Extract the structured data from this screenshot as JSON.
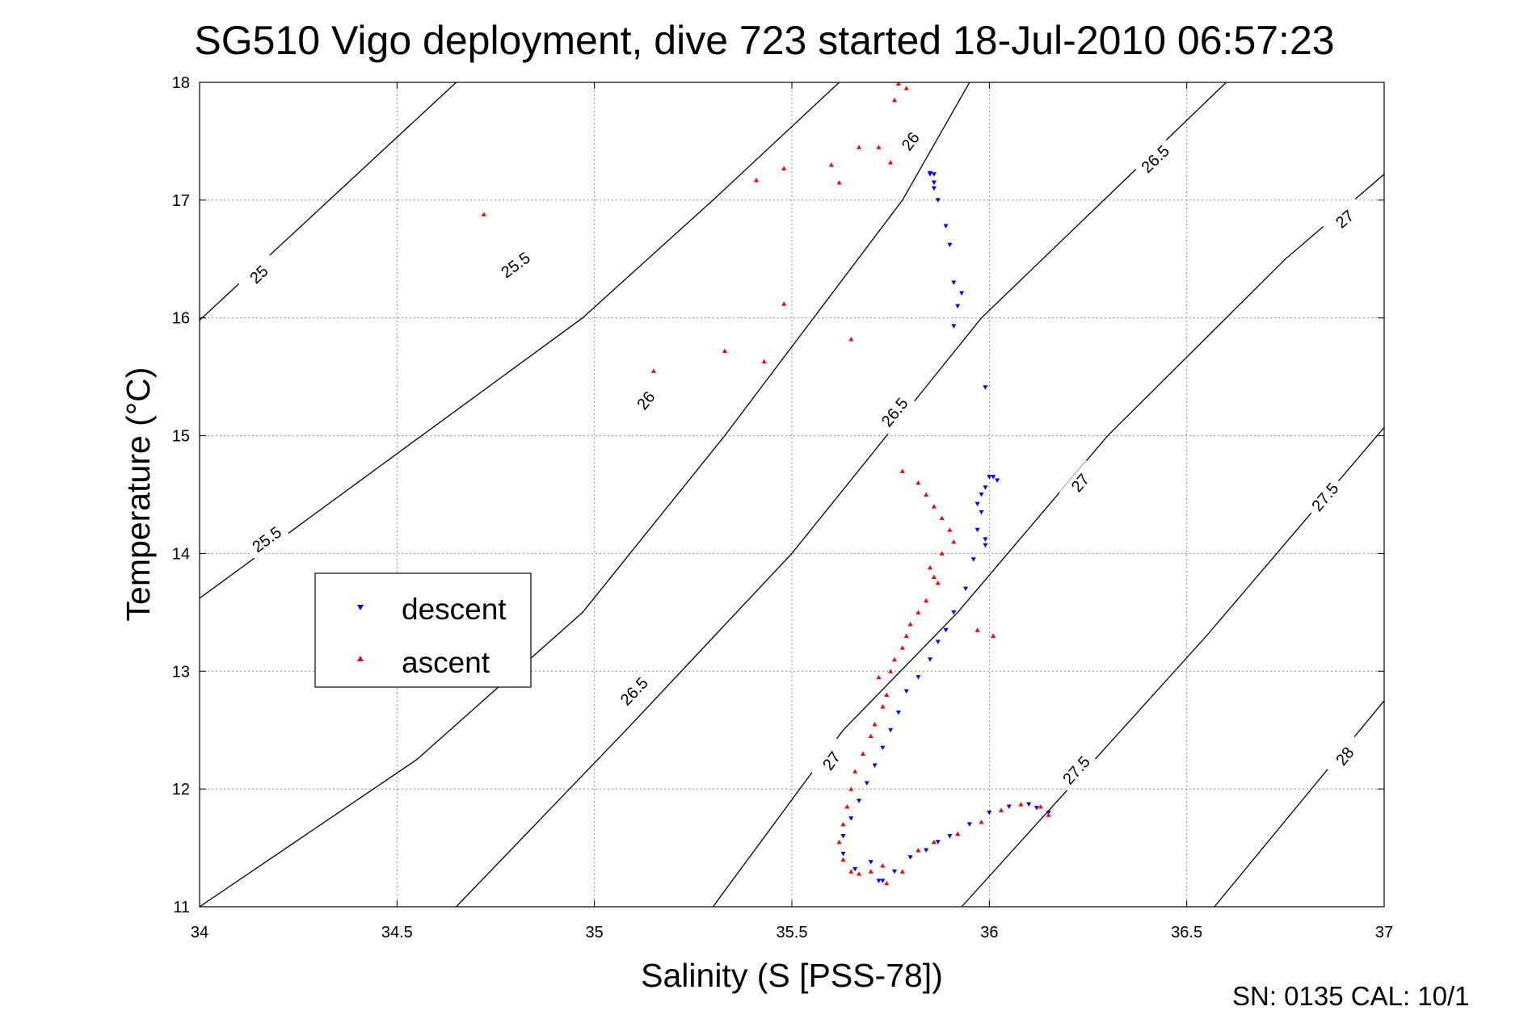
{
  "chart_data": {
    "type": "scatter",
    "title": "SG510 Vigo deployment, dive 723 started 18-Jul-2010 06:57:23",
    "xlabel": "Salinity (S [PSS-78])",
    "ylabel": "Temperature (°C)",
    "xlim": [
      34,
      37
    ],
    "ylim": [
      11,
      18
    ],
    "xticks": [
      "34",
      "34.5",
      "35",
      "35.5",
      "36",
      "36.5",
      "37"
    ],
    "yticks": [
      "11",
      "12",
      "13",
      "14",
      "15",
      "16",
      "17",
      "18"
    ],
    "grid": true,
    "legend": {
      "placement": "left"
    },
    "footer": "SN: 0135  CAL: 10/1",
    "colors": {
      "descent": "#0000ff",
      "ascent": "#ff0000",
      "isopycnal": "#000000"
    },
    "isopycnals": [
      {
        "label": "25",
        "points": [
          [
            34,
            15.98
          ],
          [
            34.65,
            18.0
          ]
        ],
        "label_positions": [
          [
            34.15,
            16.37
          ]
        ]
      },
      {
        "label": "25.5",
        "points": [
          [
            34,
            13.62
          ],
          [
            34.97,
            16.0
          ],
          [
            35.3,
            17.0
          ],
          [
            35.62,
            18.0
          ]
        ],
        "label_positions": [
          [
            34.17,
            14.12
          ],
          [
            34.8,
            16.45
          ]
        ]
      },
      {
        "label": "26",
        "points": [
          [
            34,
            11.0
          ],
          [
            34.55,
            12.25
          ],
          [
            34.97,
            13.5
          ],
          [
            35.33,
            15.0
          ],
          [
            35.78,
            17.0
          ],
          [
            35.95,
            18.0
          ]
        ],
        "label_positions": [
          [
            35.13,
            15.3
          ],
          [
            35.8,
            17.5
          ]
        ]
      },
      {
        "label": "26.5",
        "points": [
          [
            34.65,
            11.0
          ],
          [
            35.08,
            12.5
          ],
          [
            35.5,
            14.0
          ],
          [
            35.98,
            16.0
          ],
          [
            36.6,
            18.0
          ]
        ],
        "label_positions": [
          [
            35.1,
            12.83
          ],
          [
            35.76,
            15.2
          ],
          [
            36.42,
            17.35
          ]
        ]
      },
      {
        "label": "27",
        "points": [
          [
            35.3,
            11.0
          ],
          [
            35.63,
            12.5
          ],
          [
            35.92,
            13.5
          ],
          [
            36.3,
            15.0
          ],
          [
            36.75,
            16.5
          ],
          [
            37,
            17.22
          ]
        ],
        "label_positions": [
          [
            35.6,
            12.24
          ],
          [
            36.23,
            14.6
          ],
          [
            36.9,
            16.84
          ]
        ]
      },
      {
        "label": "27.5",
        "points": [
          [
            35.93,
            11.0
          ],
          [
            36.2,
            12.0
          ],
          [
            36.55,
            13.3
          ],
          [
            37,
            15.07
          ]
        ],
        "label_positions": [
          [
            36.22,
            12.16
          ],
          [
            36.85,
            14.48
          ]
        ]
      },
      {
        "label": "28",
        "points": [
          [
            36.57,
            11.0
          ],
          [
            37,
            12.75
          ]
        ],
        "label_positions": [
          [
            36.9,
            12.28
          ]
        ]
      }
    ],
    "series": [
      {
        "name": "descent",
        "marker": "triangle-down",
        "points": [
          [
            35.85,
            17.23
          ],
          [
            35.85,
            17.22
          ],
          [
            35.86,
            17.22
          ],
          [
            35.86,
            17.15
          ],
          [
            35.86,
            17.1
          ],
          [
            35.87,
            17.0
          ],
          [
            35.89,
            16.78
          ],
          [
            35.9,
            16.62
          ],
          [
            35.91,
            16.3
          ],
          [
            35.93,
            16.21
          ],
          [
            35.92,
            16.1
          ],
          [
            35.91,
            15.93
          ],
          [
            35.99,
            15.41
          ],
          [
            36.0,
            14.65
          ],
          [
            36.01,
            14.65
          ],
          [
            35.99,
            14.56
          ],
          [
            35.98,
            14.5
          ],
          [
            36.02,
            14.62
          ],
          [
            35.97,
            14.42
          ],
          [
            35.98,
            14.35
          ],
          [
            35.97,
            14.2
          ],
          [
            35.99,
            14.12
          ],
          [
            35.99,
            14.07
          ],
          [
            35.96,
            13.95
          ],
          [
            35.94,
            13.7
          ],
          [
            35.91,
            13.5
          ],
          [
            35.89,
            13.35
          ],
          [
            35.87,
            13.25
          ],
          [
            35.85,
            13.1
          ],
          [
            35.82,
            12.95
          ],
          [
            35.79,
            12.83
          ],
          [
            35.77,
            12.65
          ],
          [
            35.75,
            12.5
          ],
          [
            35.73,
            12.35
          ],
          [
            35.71,
            12.2
          ],
          [
            35.69,
            12.05
          ],
          [
            35.67,
            11.9
          ],
          [
            35.65,
            11.75
          ],
          [
            35.63,
            11.6
          ],
          [
            35.63,
            11.45
          ],
          [
            35.66,
            11.32
          ],
          [
            35.7,
            11.38
          ],
          [
            35.72,
            11.22
          ],
          [
            35.73,
            11.22
          ],
          [
            35.76,
            11.3
          ],
          [
            35.8,
            11.42
          ],
          [
            35.84,
            11.48
          ],
          [
            35.87,
            11.55
          ],
          [
            35.9,
            11.6
          ],
          [
            35.95,
            11.7
          ],
          [
            36.0,
            11.8
          ],
          [
            36.05,
            11.85
          ],
          [
            36.1,
            11.87
          ],
          [
            36.12,
            11.84
          ],
          [
            36.15,
            11.8
          ]
        ]
      },
      {
        "name": "ascent",
        "marker": "triangle-up",
        "points": [
          [
            35.77,
            17.99
          ],
          [
            35.79,
            17.95
          ],
          [
            35.76,
            17.85
          ],
          [
            35.72,
            17.45
          ],
          [
            35.75,
            17.32
          ],
          [
            35.67,
            17.45
          ],
          [
            35.6,
            17.3
          ],
          [
            35.48,
            17.27
          ],
          [
            35.41,
            17.17
          ],
          [
            35.62,
            17.15
          ],
          [
            34.72,
            16.88
          ],
          [
            35.48,
            16.12
          ],
          [
            35.65,
            15.82
          ],
          [
            35.33,
            15.72
          ],
          [
            35.43,
            15.63
          ],
          [
            35.15,
            15.55
          ],
          [
            35.78,
            14.7
          ],
          [
            35.82,
            14.6
          ],
          [
            35.84,
            14.5
          ],
          [
            35.86,
            14.4
          ],
          [
            35.88,
            14.3
          ],
          [
            35.9,
            14.2
          ],
          [
            35.91,
            14.1
          ],
          [
            35.88,
            14.0
          ],
          [
            35.85,
            13.88
          ],
          [
            35.86,
            13.8
          ],
          [
            35.87,
            13.75
          ],
          [
            35.84,
            13.6
          ],
          [
            35.82,
            13.5
          ],
          [
            35.8,
            13.4
          ],
          [
            35.79,
            13.3
          ],
          [
            35.78,
            13.2
          ],
          [
            35.76,
            13.1
          ],
          [
            35.75,
            13.0
          ],
          [
            35.72,
            12.95
          ],
          [
            35.97,
            13.35
          ],
          [
            36.01,
            13.3
          ],
          [
            35.74,
            12.8
          ],
          [
            35.73,
            12.7
          ],
          [
            35.71,
            12.55
          ],
          [
            35.7,
            12.45
          ],
          [
            35.68,
            12.3
          ],
          [
            35.66,
            12.15
          ],
          [
            35.65,
            12.0
          ],
          [
            35.64,
            11.85
          ],
          [
            35.63,
            11.7
          ],
          [
            35.62,
            11.55
          ],
          [
            35.63,
            11.4
          ],
          [
            35.65,
            11.3
          ],
          [
            35.67,
            11.28
          ],
          [
            35.7,
            11.3
          ],
          [
            35.73,
            11.35
          ],
          [
            35.74,
            11.2
          ],
          [
            35.78,
            11.3
          ],
          [
            35.82,
            11.48
          ],
          [
            35.86,
            11.55
          ],
          [
            35.92,
            11.62
          ],
          [
            35.98,
            11.72
          ],
          [
            36.03,
            11.82
          ],
          [
            36.08,
            11.87
          ],
          [
            36.13,
            11.85
          ],
          [
            36.15,
            11.78
          ]
        ]
      }
    ]
  }
}
